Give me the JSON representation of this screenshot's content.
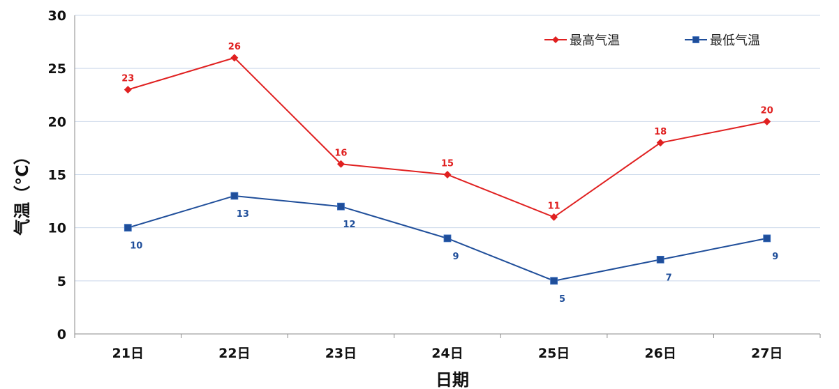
{
  "chart_data": {
    "type": "line",
    "xlabel": "日期",
    "ylabel": "气温（°C）",
    "categories": [
      "21日",
      "22日",
      "23日",
      "24日",
      "25日",
      "26日",
      "27日"
    ],
    "ylim": [
      0,
      30
    ],
    "yticks": [
      0,
      5,
      10,
      15,
      20,
      25,
      30
    ],
    "grid": true,
    "legend_position": "top-right",
    "series": [
      {
        "name": "最高气温",
        "values": [
          23,
          26,
          16,
          15,
          11,
          18,
          20
        ],
        "labels": [
          "23",
          "26",
          "16",
          "15",
          "11",
          "18",
          "20"
        ],
        "color": "#e02020",
        "marker": "diamond",
        "label_position": "above"
      },
      {
        "name": "最低气温",
        "values": [
          10,
          13,
          12,
          9,
          5,
          7,
          9
        ],
        "labels": [
          "10",
          "13",
          "12",
          "9",
          "5",
          "7",
          "9"
        ],
        "color": "#1f4e9a",
        "marker": "square",
        "label_position": "below"
      }
    ]
  }
}
